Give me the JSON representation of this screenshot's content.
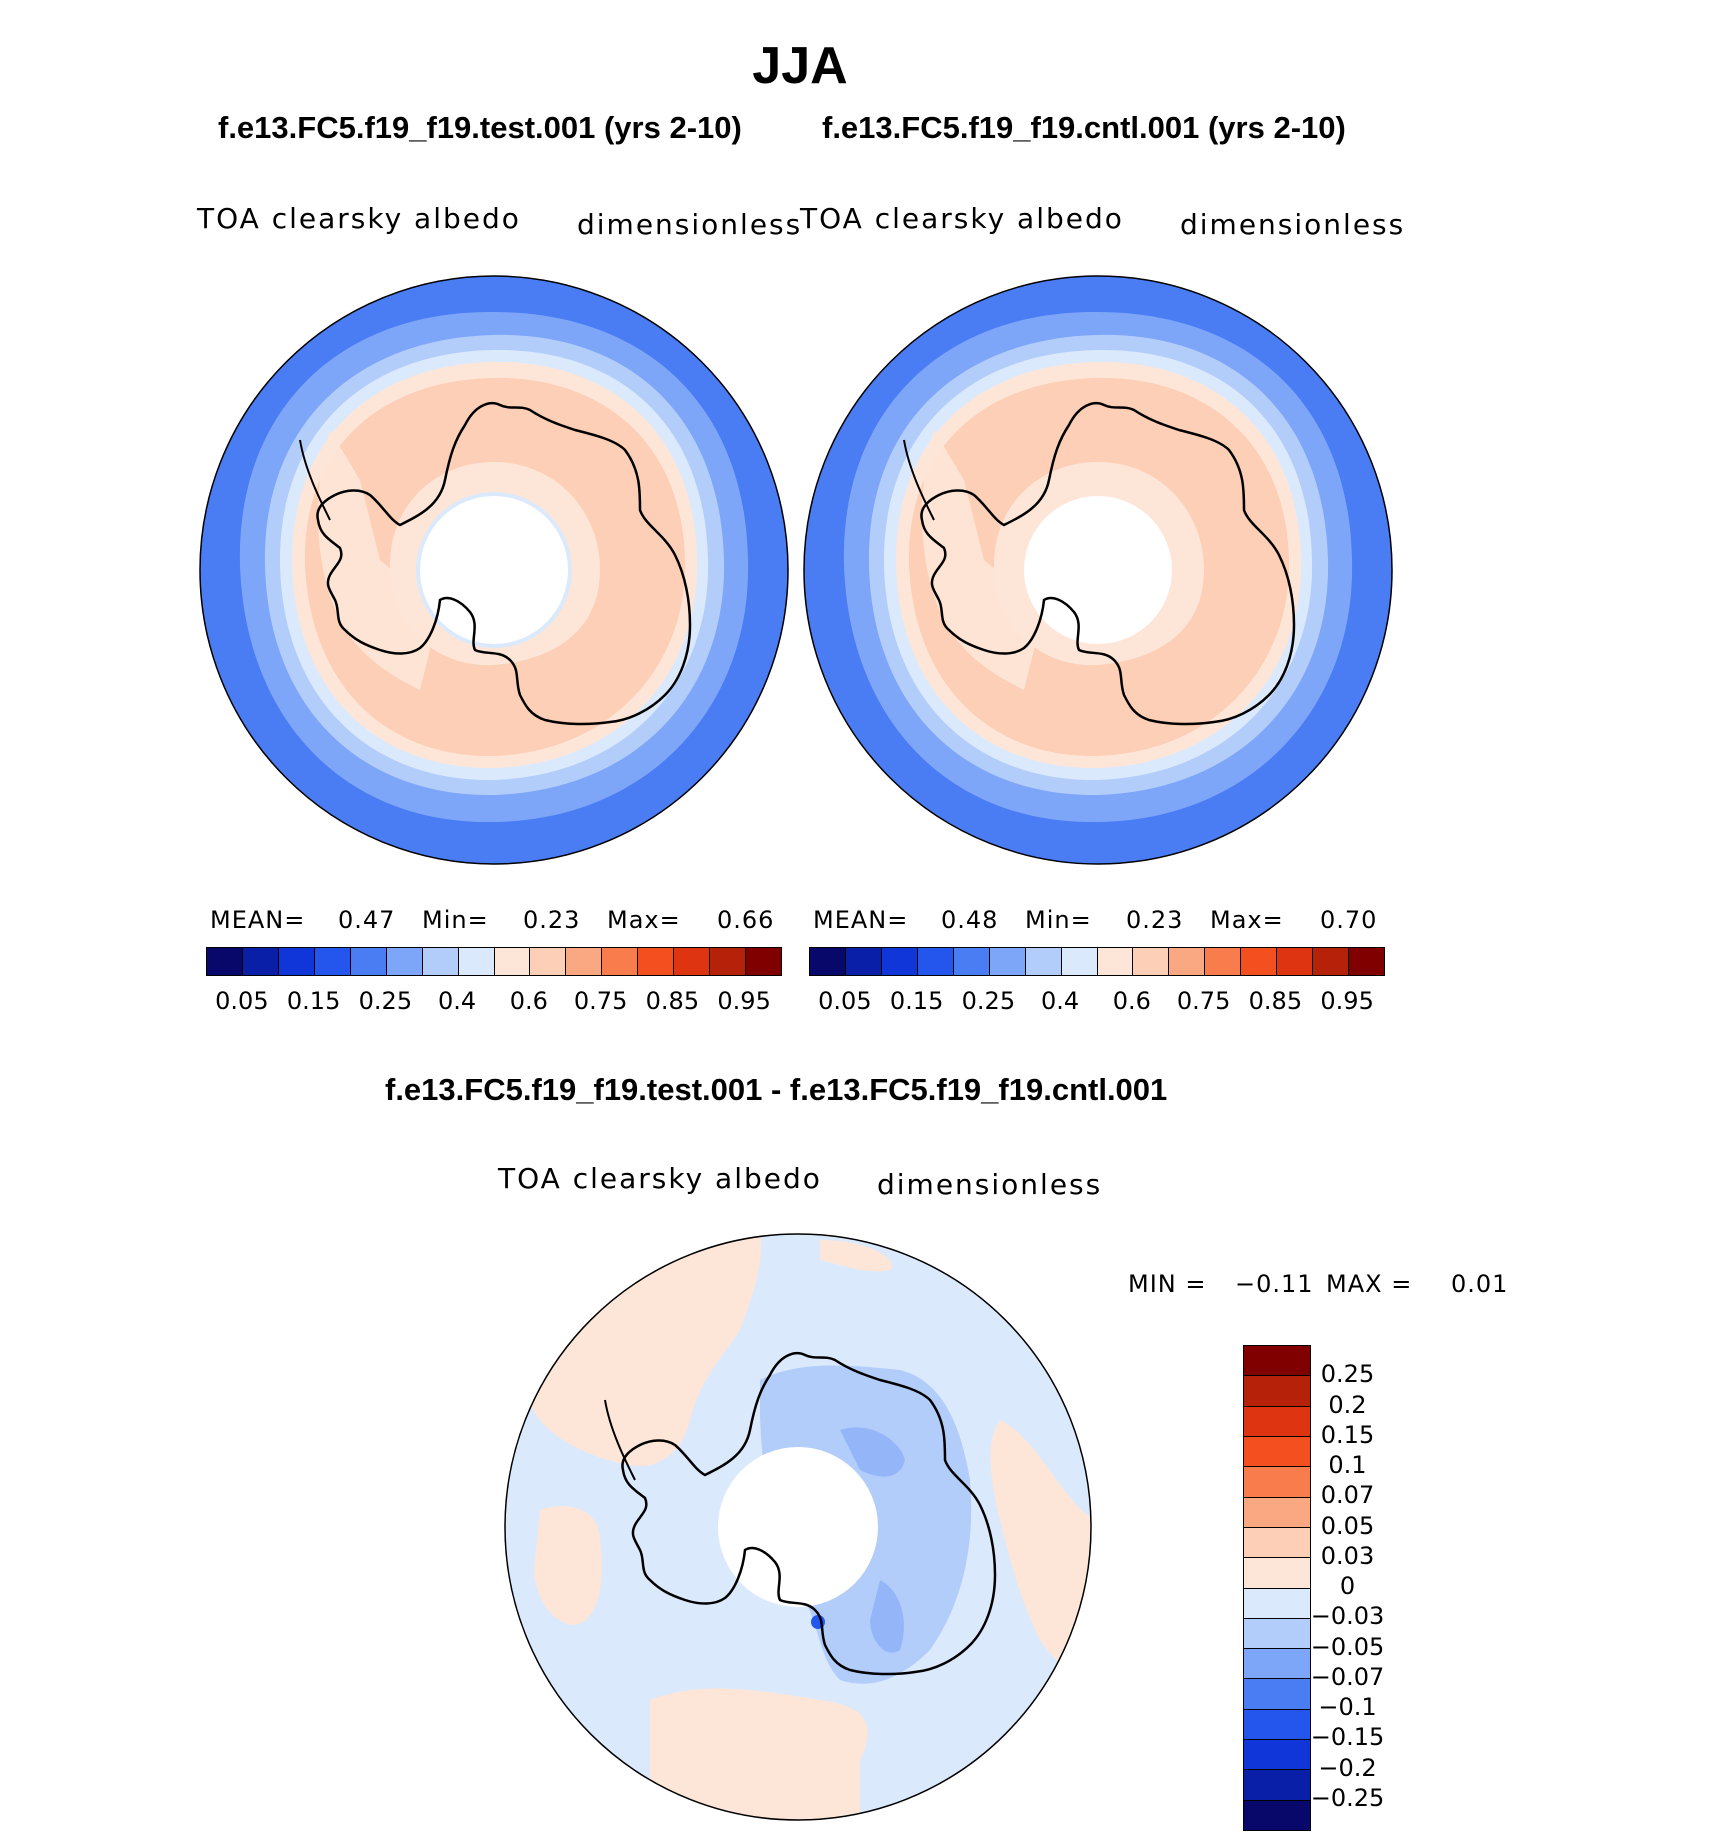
{
  "title": "JJA",
  "panels": [
    {
      "case": "f.e13.FC5.f19_f19.test.001 (yrs 2-10)",
      "variable": "TOA clearsky albedo",
      "units": "dimensionless",
      "mean_label": "MEAN=",
      "mean": "0.47",
      "min_label": "Min=",
      "min": "0.23",
      "max_label": "Max=",
      "max": "0.66"
    },
    {
      "case": "f.e13.FC5.f19_f19.cntl.001 (yrs 2-10)",
      "variable": "TOA clearsky albedo",
      "units": "dimensionless",
      "mean_label": "MEAN=",
      "mean": "0.48",
      "min_label": "Min=",
      "min": "0.23",
      "max_label": "Max=",
      "max": "0.70"
    }
  ],
  "colorbar": {
    "colors": [
      "#08086b",
      "#0a1fa8",
      "#1036d9",
      "#2456ee",
      "#4a7cf3",
      "#7ea6f8",
      "#b3cdfb",
      "#dbe9fd",
      "#fde6d8",
      "#fccfb6",
      "#f9a882",
      "#f87c4c",
      "#f4501f",
      "#de3411",
      "#b52209",
      "#800000"
    ],
    "labels": [
      "0.05",
      "0.15",
      "0.25",
      "0.4",
      "0.6",
      "0.75",
      "0.85",
      "0.95"
    ]
  },
  "diff": {
    "title": "f.e13.FC5.f19_f19.test.001 - f.e13.FC5.f19_f19.cntl.001",
    "variable": "TOA clearsky albedo",
    "units": "dimensionless",
    "min_label": "MIN =",
    "min": "−0.11",
    "max_label": "MAX =",
    "max": "0.01",
    "colors": [
      "#800000",
      "#b52209",
      "#de3411",
      "#f4501f",
      "#f87c4c",
      "#f9a882",
      "#fccfb6",
      "#fde6d8",
      "#dbe9fd",
      "#b3cdfb",
      "#7ea6f8",
      "#4a7cf3",
      "#2456ee",
      "#1036d9",
      "#0a1fa8",
      "#08086b"
    ],
    "labels": [
      "0.25",
      "0.2",
      "0.15",
      "0.1",
      "0.07",
      "0.05",
      "0.03",
      "0",
      "−0.03",
      "−0.05",
      "−0.07",
      "−0.1",
      "−0.15",
      "−0.2",
      "−0.25"
    ]
  }
}
